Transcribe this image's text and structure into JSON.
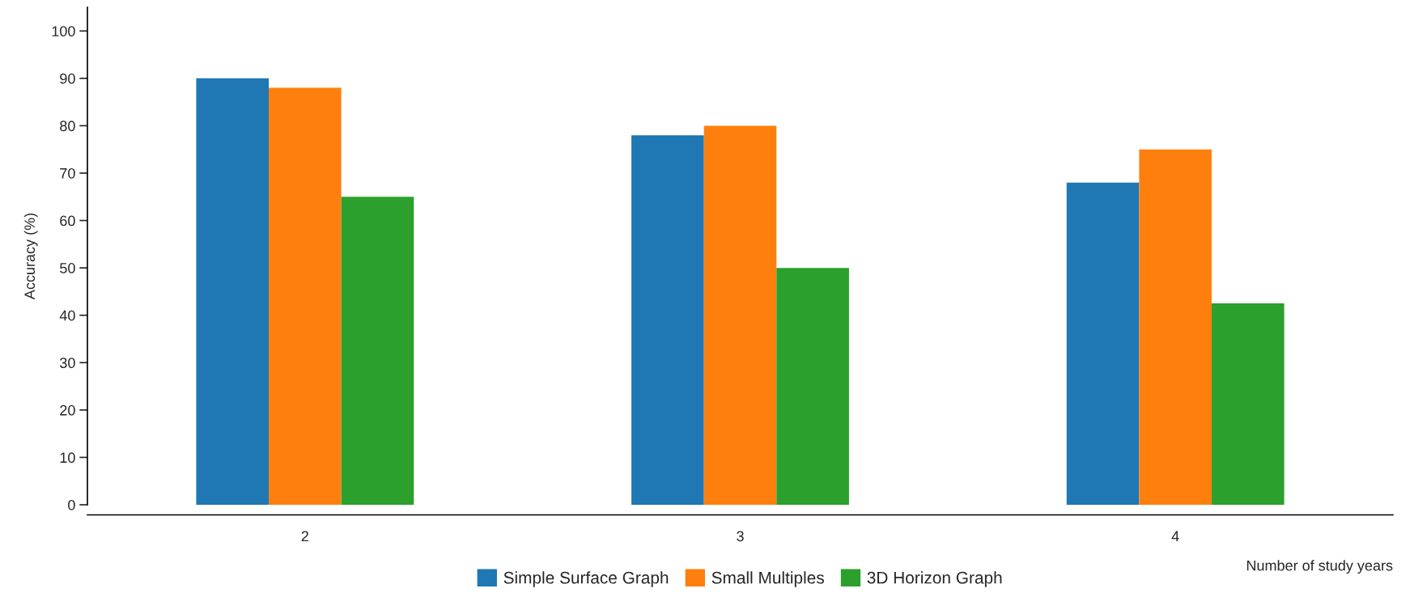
{
  "chart_data": {
    "type": "bar",
    "xlabel": "Number of study years",
    "ylabel": "Accuracy (%)",
    "categories": [
      "2",
      "3",
      "4"
    ],
    "series": [
      {
        "name": "Simple Surface Graph",
        "color": "#1f77b4",
        "values": [
          90,
          78,
          68
        ]
      },
      {
        "name": "Small Multiples",
        "color": "#ff7f0e",
        "values": [
          88,
          80,
          75
        ]
      },
      {
        "name": "3D Horizon Graph",
        "color": "#2ca02c",
        "values": [
          65,
          50,
          42.5
        ]
      }
    ],
    "ylim": [
      0,
      105
    ],
    "yticks": [
      0,
      10,
      20,
      30,
      40,
      50,
      60,
      70,
      80,
      90,
      100
    ],
    "grid": false,
    "legend": "bottom"
  }
}
